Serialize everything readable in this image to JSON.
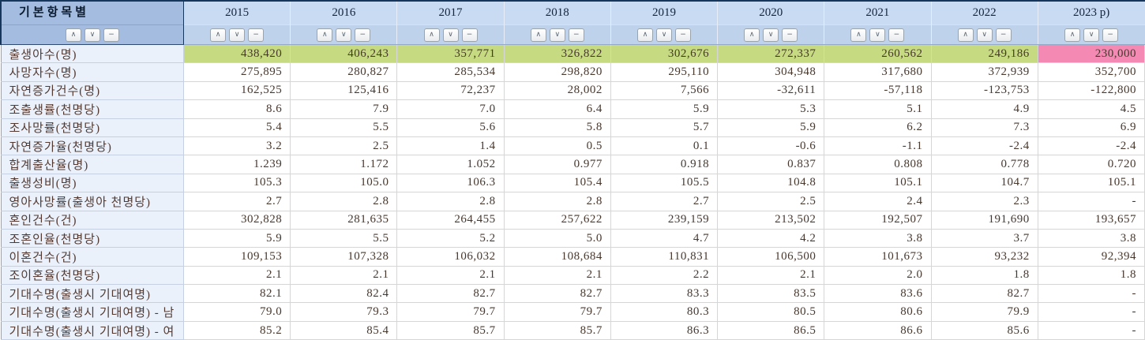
{
  "header": {
    "corner_label": "기본항목별",
    "years": [
      "2015",
      "2016",
      "2017",
      "2018",
      "2019",
      "2020",
      "2021",
      "2022",
      "2023 p)"
    ]
  },
  "icons": {
    "sort_ascending": "∧",
    "sort_descending": "∨",
    "remove_column": "−"
  },
  "colors": {
    "corner_header_bg": "#a3bcdf",
    "year_header_bg": "#c9daf3",
    "year_buttons_bg": "#bfd2ec",
    "row_label_bg": "#eaf1fb",
    "highlight_green": "#c6da82",
    "highlight_pink": "#f489b3",
    "header_border_navy": "#16365c"
  },
  "table": {
    "rows": [
      {
        "label": "출생아수(명)",
        "values": [
          "438,420",
          "406,243",
          "357,771",
          "326,822",
          "302,676",
          "272,337",
          "260,562",
          "249,186",
          "230,000"
        ],
        "highlights": [
          "green",
          "green",
          "green",
          "green",
          "green",
          "green",
          "green",
          "green",
          "pink"
        ]
      },
      {
        "label": "사망자수(명)",
        "values": [
          "275,895",
          "280,827",
          "285,534",
          "298,820",
          "295,110",
          "304,948",
          "317,680",
          "372,939",
          "352,700"
        ]
      },
      {
        "label": "자연증가건수(명)",
        "values": [
          "162,525",
          "125,416",
          "72,237",
          "28,002",
          "7,566",
          "-32,611",
          "-57,118",
          "-123,753",
          "-122,800"
        ]
      },
      {
        "label": "조출생률(천명당)",
        "values": [
          "8.6",
          "7.9",
          "7.0",
          "6.4",
          "5.9",
          "5.3",
          "5.1",
          "4.9",
          "4.5"
        ]
      },
      {
        "label": "조사망률(천명당)",
        "values": [
          "5.4",
          "5.5",
          "5.6",
          "5.8",
          "5.7",
          "5.9",
          "6.2",
          "7.3",
          "6.9"
        ]
      },
      {
        "label": "자연증가율(천명당)",
        "values": [
          "3.2",
          "2.5",
          "1.4",
          "0.5",
          "0.1",
          "-0.6",
          "-1.1",
          "-2.4",
          "-2.4"
        ]
      },
      {
        "label": "합계출산율(명)",
        "values": [
          "1.239",
          "1.172",
          "1.052",
          "0.977",
          "0.918",
          "0.837",
          "0.808",
          "0.778",
          "0.720"
        ]
      },
      {
        "label": "출생성비(명)",
        "values": [
          "105.3",
          "105.0",
          "106.3",
          "105.4",
          "105.5",
          "104.8",
          "105.1",
          "104.7",
          "105.1"
        ]
      },
      {
        "label": "영아사망률(출생아 천명당)",
        "values": [
          "2.7",
          "2.8",
          "2.8",
          "2.8",
          "2.7",
          "2.5",
          "2.4",
          "2.3",
          "-"
        ]
      },
      {
        "label": "혼인건수(건)",
        "values": [
          "302,828",
          "281,635",
          "264,455",
          "257,622",
          "239,159",
          "213,502",
          "192,507",
          "191,690",
          "193,657"
        ]
      },
      {
        "label": "조혼인율(천명당)",
        "values": [
          "5.9",
          "5.5",
          "5.2",
          "5.0",
          "4.7",
          "4.2",
          "3.8",
          "3.7",
          "3.8"
        ]
      },
      {
        "label": "이혼건수(건)",
        "values": [
          "109,153",
          "107,328",
          "106,032",
          "108,684",
          "110,831",
          "106,500",
          "101,673",
          "93,232",
          "92,394"
        ]
      },
      {
        "label": "조이혼율(천명당)",
        "values": [
          "2.1",
          "2.1",
          "2.1",
          "2.1",
          "2.2",
          "2.1",
          "2.0",
          "1.8",
          "1.8"
        ]
      },
      {
        "label": "기대수명(출생시 기대여명)",
        "values": [
          "82.1",
          "82.4",
          "82.7",
          "82.7",
          "83.3",
          "83.5",
          "83.6",
          "82.7",
          "-"
        ]
      },
      {
        "label": "기대수명(출생시 기대여명) - 남",
        "values": [
          "79.0",
          "79.3",
          "79.7",
          "79.7",
          "80.3",
          "80.5",
          "80.6",
          "79.9",
          "-"
        ]
      },
      {
        "label": "기대수명(출생시 기대여명) - 여",
        "values": [
          "85.2",
          "85.4",
          "85.7",
          "85.7",
          "86.3",
          "86.5",
          "86.6",
          "85.6",
          "-"
        ]
      }
    ]
  }
}
